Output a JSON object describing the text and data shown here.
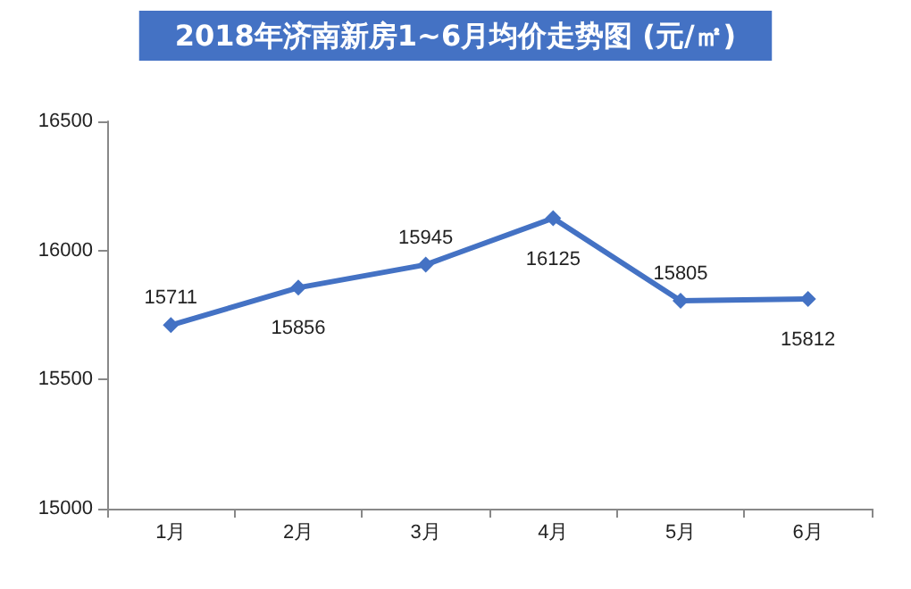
{
  "chart_data": {
    "type": "line",
    "title": "2018年济南新房1~6月均价走势图 (元/㎡)",
    "categories": [
      "1月",
      "2月",
      "3月",
      "4月",
      "5月",
      "6月"
    ],
    "series": [
      {
        "color": "#4472c4",
        "values": [
          15711,
          15856,
          15945,
          16125,
          15805,
          15812
        ]
      }
    ],
    "ylim": [
      15000,
      16500
    ],
    "yticks": [
      15000,
      15500,
      16000,
      16500
    ],
    "grid": false,
    "marker": "diamond",
    "line_style": "solid",
    "data_labels": true
  }
}
